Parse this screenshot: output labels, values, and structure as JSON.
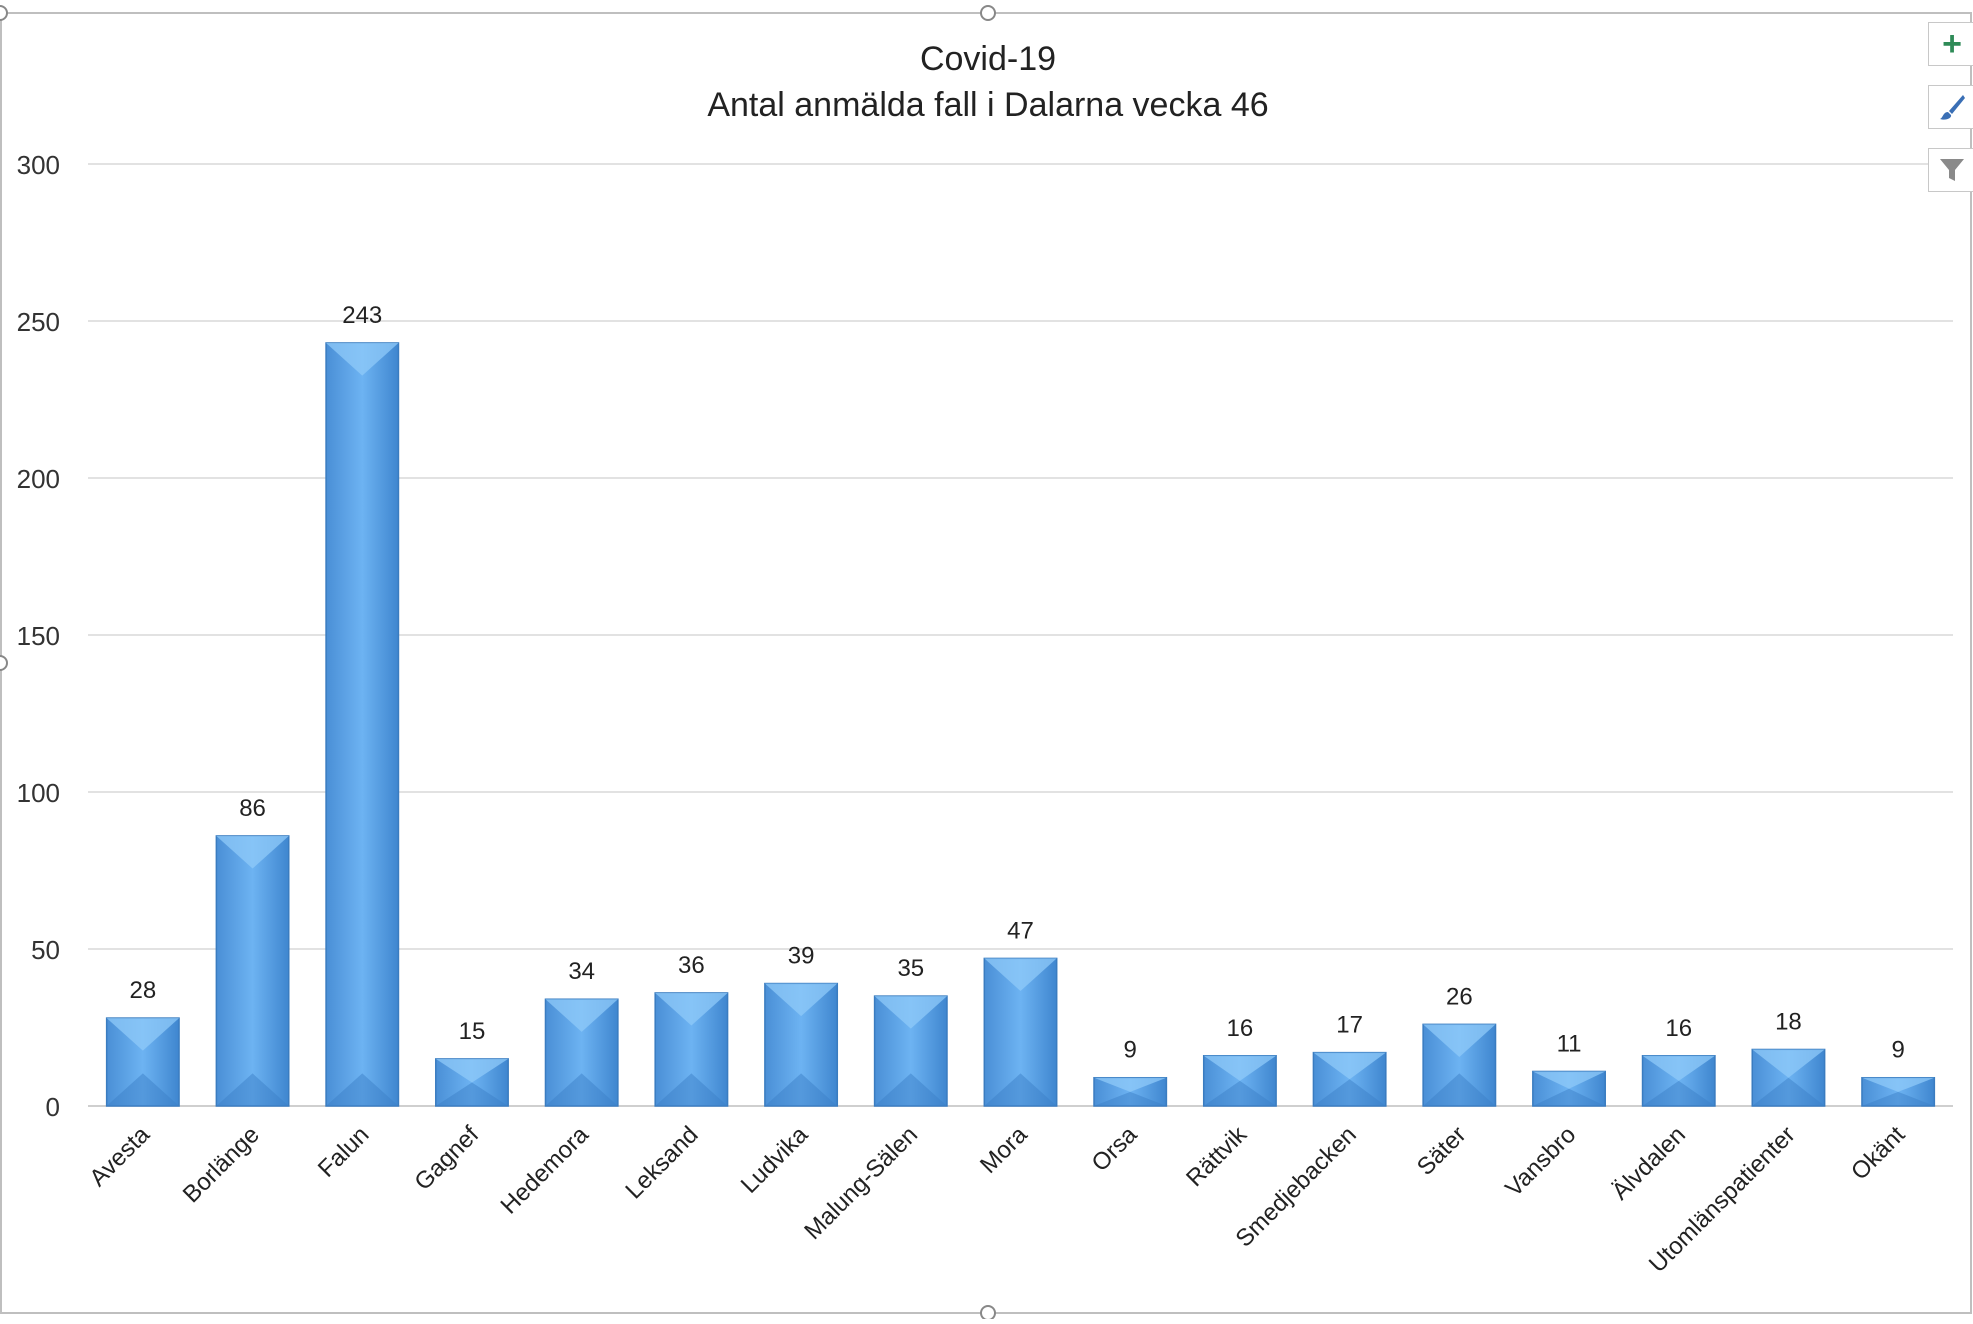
{
  "chart_data": {
    "type": "bar",
    "title": "Covid-19",
    "subtitle": "Antal anmälda fall i Dalarna vecka 46",
    "categories": [
      "Avesta",
      "Borlänge",
      "Falun",
      "Gagnef",
      "Hedemora",
      "Leksand",
      "Ludvika",
      "Malung-Sälen",
      "Mora",
      "Orsa",
      "Rättvik",
      "Smedjebacken",
      "Säter",
      "Vansbro",
      "Älvdalen",
      "Utomlänspatienter",
      "Okänt"
    ],
    "values": [
      28,
      86,
      243,
      15,
      34,
      36,
      39,
      35,
      47,
      9,
      16,
      17,
      26,
      11,
      16,
      18,
      9
    ],
    "ylim": [
      0,
      300
    ],
    "yticks": [
      0,
      50,
      100,
      150,
      200,
      250,
      300
    ],
    "grid": true,
    "legend": "none",
    "bar_color": "#5ba3e6"
  },
  "side_buttons": [
    {
      "name": "chart-elements-button",
      "icon": "plus-icon"
    },
    {
      "name": "chart-styles-button",
      "icon": "paintbrush-icon"
    },
    {
      "name": "chart-filters-button",
      "icon": "filter-icon"
    }
  ]
}
